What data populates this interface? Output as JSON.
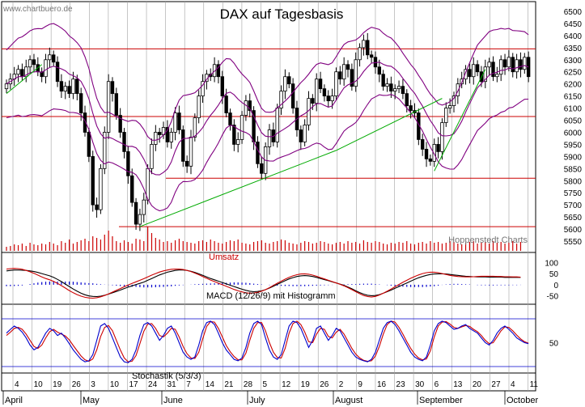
{
  "watermark": "www.chartbuero.de",
  "title": "DAX auf Tagesbasis",
  "source_note": "Hoppenstedt Charts",
  "volume_label": "Umsatz",
  "macd_label": "MACD (12/26/9) mit Histogramm",
  "stoch_label": "Stochastik (5/3/3)",
  "colors": {
    "band": "#800080",
    "level": "#cc0000",
    "trend": "#00aa00",
    "candle": "#000000",
    "volume": "#cc0000",
    "macd_signal": "#cc0000",
    "macd_hist": "#0000cc",
    "stoch_k": "#0000cc",
    "stoch_d": "#cc0000"
  },
  "chart_data": [
    {
      "type": "candlestick",
      "title": "DAX auf Tagesbasis",
      "ylim": [
        5550,
        6500
      ],
      "y_ticks": [
        5550,
        5600,
        5650,
        5700,
        5750,
        5800,
        5850,
        5900,
        5950,
        6000,
        6050,
        6100,
        6150,
        6200,
        6250,
        6300,
        6350,
        6400,
        6450,
        6500
      ],
      "x_tick_labels": [
        "4",
        "10",
        "19",
        "26",
        "3",
        "10",
        "17",
        "24",
        "31",
        "7",
        "14",
        "21",
        "28",
        "5",
        "12",
        "19",
        "26",
        "2",
        "9",
        "16",
        "23",
        "30",
        "6",
        "13",
        "20",
        "27",
        "4",
        "11"
      ],
      "month_labels": [
        "April",
        "May",
        "June",
        "July",
        "August",
        "September",
        "October"
      ],
      "horizontal_levels": [
        6345,
        6065,
        5810,
        5610
      ],
      "closes": [
        6200,
        6220,
        6240,
        6260,
        6230,
        6270,
        6300,
        6280,
        6250,
        6230,
        6300,
        6320,
        6290,
        6210,
        6170,
        6190,
        6160,
        6220,
        6160,
        6080,
        6000,
        5900,
        5700,
        5680,
        5850,
        6000,
        6210,
        6160,
        6070,
        6000,
        5920,
        5820,
        5710,
        5620,
        5660,
        5720,
        5850,
        5950,
        6000,
        5990,
        6020,
        5960,
        6000,
        6080,
        6010,
        5880,
        5860,
        5980,
        6060,
        6150,
        6210,
        6240,
        6230,
        6280,
        6230,
        6150,
        6080,
        6030,
        5950,
        5970,
        6070,
        6130,
        6090,
        5960,
        5870,
        5830,
        5940,
        6010,
        5960,
        6100,
        6170,
        6230,
        6200,
        6100,
        6010,
        5960,
        6030,
        6140,
        6120,
        6220,
        6180,
        6150,
        6130,
        6150,
        6250,
        6220,
        6280,
        6260,
        6190,
        6300,
        6350,
        6380,
        6320,
        6310,
        6270,
        6240,
        6190,
        6200,
        6170,
        6180,
        6190,
        6160,
        6110,
        6090,
        6080,
        5970,
        5930,
        5890,
        5880,
        5950,
        5920,
        6040,
        6100,
        6110,
        6150,
        6200,
        6220,
        6260,
        6230,
        6280,
        6250,
        6210,
        6270,
        6290,
        6230,
        6240,
        6300,
        6270,
        6310,
        6250,
        6300,
        6260,
        6310,
        6230
      ],
      "upper_band": "envelope +",
      "lower_band": "envelope -",
      "trendlines": [
        {
          "from": [
            34,
            5610
          ],
          "to": [
            84,
            5925
          ]
        },
        {
          "from": [
            84,
            5925
          ],
          "to": [
            111,
            6140
          ]
        },
        {
          "from": [
            109,
            5840
          ],
          "to": [
            122,
            6260
          ]
        },
        {
          "from": [
            0,
            6160
          ],
          "to": [
            9,
            6280
          ]
        }
      ]
    },
    {
      "type": "bar",
      "title": "Umsatz",
      "series": [
        {
          "name": "Umsatz",
          "values": [
            5,
            6,
            8,
            7,
            9,
            6,
            10,
            8,
            7,
            9,
            8,
            11,
            9,
            7,
            12,
            10,
            14,
            9,
            11,
            13,
            15,
            12,
            18,
            16,
            14,
            20,
            25,
            18,
            12,
            10,
            13,
            11,
            9,
            15,
            14,
            12,
            30,
            22,
            16,
            14,
            11,
            12,
            10,
            13,
            15,
            12,
            11,
            10,
            9,
            12,
            13,
            11,
            14,
            12,
            10,
            9,
            11,
            13,
            12,
            14,
            10,
            9,
            8,
            11,
            12,
            13,
            10,
            9,
            11,
            12,
            14,
            13,
            10,
            9,
            8,
            10,
            12,
            11,
            9,
            10,
            12,
            11,
            9,
            8,
            10,
            11,
            9,
            12,
            10,
            11,
            9,
            13,
            11,
            10,
            12,
            11,
            9,
            8,
            10,
            9,
            11,
            10,
            12,
            9,
            8,
            10,
            11,
            9,
            12,
            10,
            11,
            9,
            10,
            12,
            11,
            9,
            8,
            10,
            11,
            12,
            9,
            10,
            11,
            9,
            12,
            10,
            11,
            9,
            10,
            12,
            9,
            11
          ]
        }
      ]
    },
    {
      "type": "line",
      "title": "MACD (12/26/9) mit Histogramm",
      "y_ticks": [
        100,
        50,
        0,
        -50
      ],
      "ylim": [
        -80,
        130
      ],
      "series": [
        {
          "name": "MACD",
          "values": [
            62,
            64,
            66,
            66,
            65,
            64,
            62,
            59,
            55,
            50,
            45,
            40,
            33,
            24,
            14,
            3,
            -8,
            -19,
            -29,
            -38,
            -45,
            -50,
            -52,
            -53,
            -51,
            -47,
            -42,
            -36,
            -30,
            -24,
            -17,
            -11,
            -5,
            1,
            6,
            12,
            20,
            28,
            36,
            44,
            50,
            56,
            60,
            64,
            66,
            66,
            64,
            60,
            55,
            49,
            42,
            35,
            28,
            22,
            16,
            10,
            4,
            -2,
            -8,
            -14,
            -20,
            -25,
            -29,
            -31,
            -30,
            -27,
            -22,
            -15,
            -7,
            2,
            10,
            18,
            26,
            32,
            37,
            40,
            41,
            40,
            37,
            33,
            28,
            23,
            18,
            13,
            8,
            3,
            -3,
            -10,
            -18,
            -27,
            -35,
            -42,
            -47,
            -49,
            -48,
            -44,
            -38,
            -31,
            -24,
            -16,
            -8,
            0,
            8,
            16,
            24,
            31,
            37,
            42,
            46,
            48,
            49,
            49,
            48,
            46,
            44,
            42,
            40,
            38,
            37,
            36,
            35,
            35,
            35,
            34,
            34,
            34,
            34,
            33,
            33,
            33,
            33,
            33
          ]
        },
        {
          "name": "Signal",
          "values": [
            70,
            72,
            73,
            72,
            69,
            64,
            58,
            51,
            43,
            35,
            28,
            22,
            15,
            6,
            -4,
            -15,
            -26,
            -36,
            -44,
            -51,
            -56,
            -59,
            -60,
            -58,
            -54,
            -48,
            -41,
            -33,
            -25,
            -17,
            -9,
            -1,
            6,
            13,
            20,
            27,
            35,
            43,
            50,
            57,
            62,
            66,
            69,
            70,
            70,
            68,
            64,
            59,
            52,
            45,
            37,
            29,
            21,
            14,
            7,
            0,
            -7,
            -14,
            -21,
            -27,
            -32,
            -36,
            -38,
            -37,
            -34,
            -29,
            -22,
            -13,
            -3,
            7,
            16,
            25,
            33,
            40,
            45,
            48,
            49,
            47,
            43,
            38,
            32,
            26,
            20,
            14,
            8,
            2,
            -5,
            -13,
            -22,
            -31,
            -40,
            -48,
            -53,
            -55,
            -52,
            -46,
            -38,
            -29,
            -19,
            -9,
            1,
            11,
            20,
            29,
            37,
            44,
            50,
            54,
            56,
            56,
            54,
            50,
            46,
            42,
            39,
            37,
            36,
            35,
            35,
            36,
            37,
            38,
            38,
            38,
            38,
            37,
            37,
            36,
            36,
            35,
            35,
            34
          ]
        }
      ]
    },
    {
      "type": "line",
      "title": "Stochastik (5/3/3)",
      "y_ticks": [
        50
      ],
      "ylim": [
        0,
        100
      ],
      "series": [
        {
          "name": "%K",
          "values": [
            70,
            78,
            85,
            80,
            72,
            60,
            45,
            35,
            40,
            55,
            70,
            80,
            75,
            65,
            70,
            60,
            48,
            35,
            25,
            15,
            10,
            12,
            25,
            55,
            85,
            90,
            80,
            60,
            40,
            20,
            10,
            8,
            15,
            35,
            65,
            88,
            92,
            85,
            70,
            55,
            65,
            80,
            85,
            70,
            50,
            30,
            20,
            15,
            20,
            45,
            75,
            92,
            95,
            88,
            70,
            50,
            35,
            25,
            15,
            12,
            18,
            40,
            70,
            90,
            95,
            88,
            60,
            35,
            20,
            15,
            25,
            55,
            85,
            95,
            92,
            80,
            60,
            40,
            55,
            80,
            85,
            70,
            55,
            65,
            80,
            75,
            60,
            45,
            30,
            20,
            15,
            12,
            10,
            15,
            30,
            55,
            80,
            92,
            95,
            88,
            75,
            60,
            45,
            30,
            20,
            15,
            12,
            20,
            45,
            75,
            90,
            95,
            92,
            85,
            78,
            80,
            85,
            88,
            80,
            75,
            70,
            60,
            50,
            45,
            55,
            70,
            80,
            85,
            78,
            70,
            60,
            55,
            50,
            48
          ]
        },
        {
          "name": "%D",
          "values": [
            65,
            72,
            80,
            82,
            78,
            68,
            55,
            42,
            38,
            45,
            60,
            73,
            78,
            72,
            68,
            64,
            56,
            44,
            33,
            22,
            14,
            11,
            16,
            35,
            63,
            82,
            86,
            75,
            55,
            35,
            18,
            10,
            11,
            23,
            48,
            74,
            89,
            90,
            80,
            65,
            62,
            70,
            80,
            78,
            62,
            42,
            27,
            18,
            17,
            30,
            58,
            84,
            94,
            93,
            80,
            62,
            44,
            31,
            21,
            14,
            14,
            28,
            55,
            80,
            92,
            92,
            75,
            50,
            30,
            19,
            18,
            38,
            70,
            90,
            95,
            88,
            72,
            52,
            50,
            68,
            80,
            78,
            63,
            60,
            72,
            78,
            68,
            53,
            38,
            26,
            18,
            13,
            11,
            12,
            22,
            42,
            68,
            88,
            95,
            93,
            82,
            68,
            52,
            38,
            26,
            18,
            14,
            16,
            33,
            62,
            85,
            93,
            94,
            89,
            82,
            80,
            83,
            86,
            84,
            78,
            73,
            65,
            55,
            48,
            50,
            62,
            75,
            83,
            82,
            75,
            66,
            58,
            52,
            49
          ]
        }
      ]
    }
  ]
}
